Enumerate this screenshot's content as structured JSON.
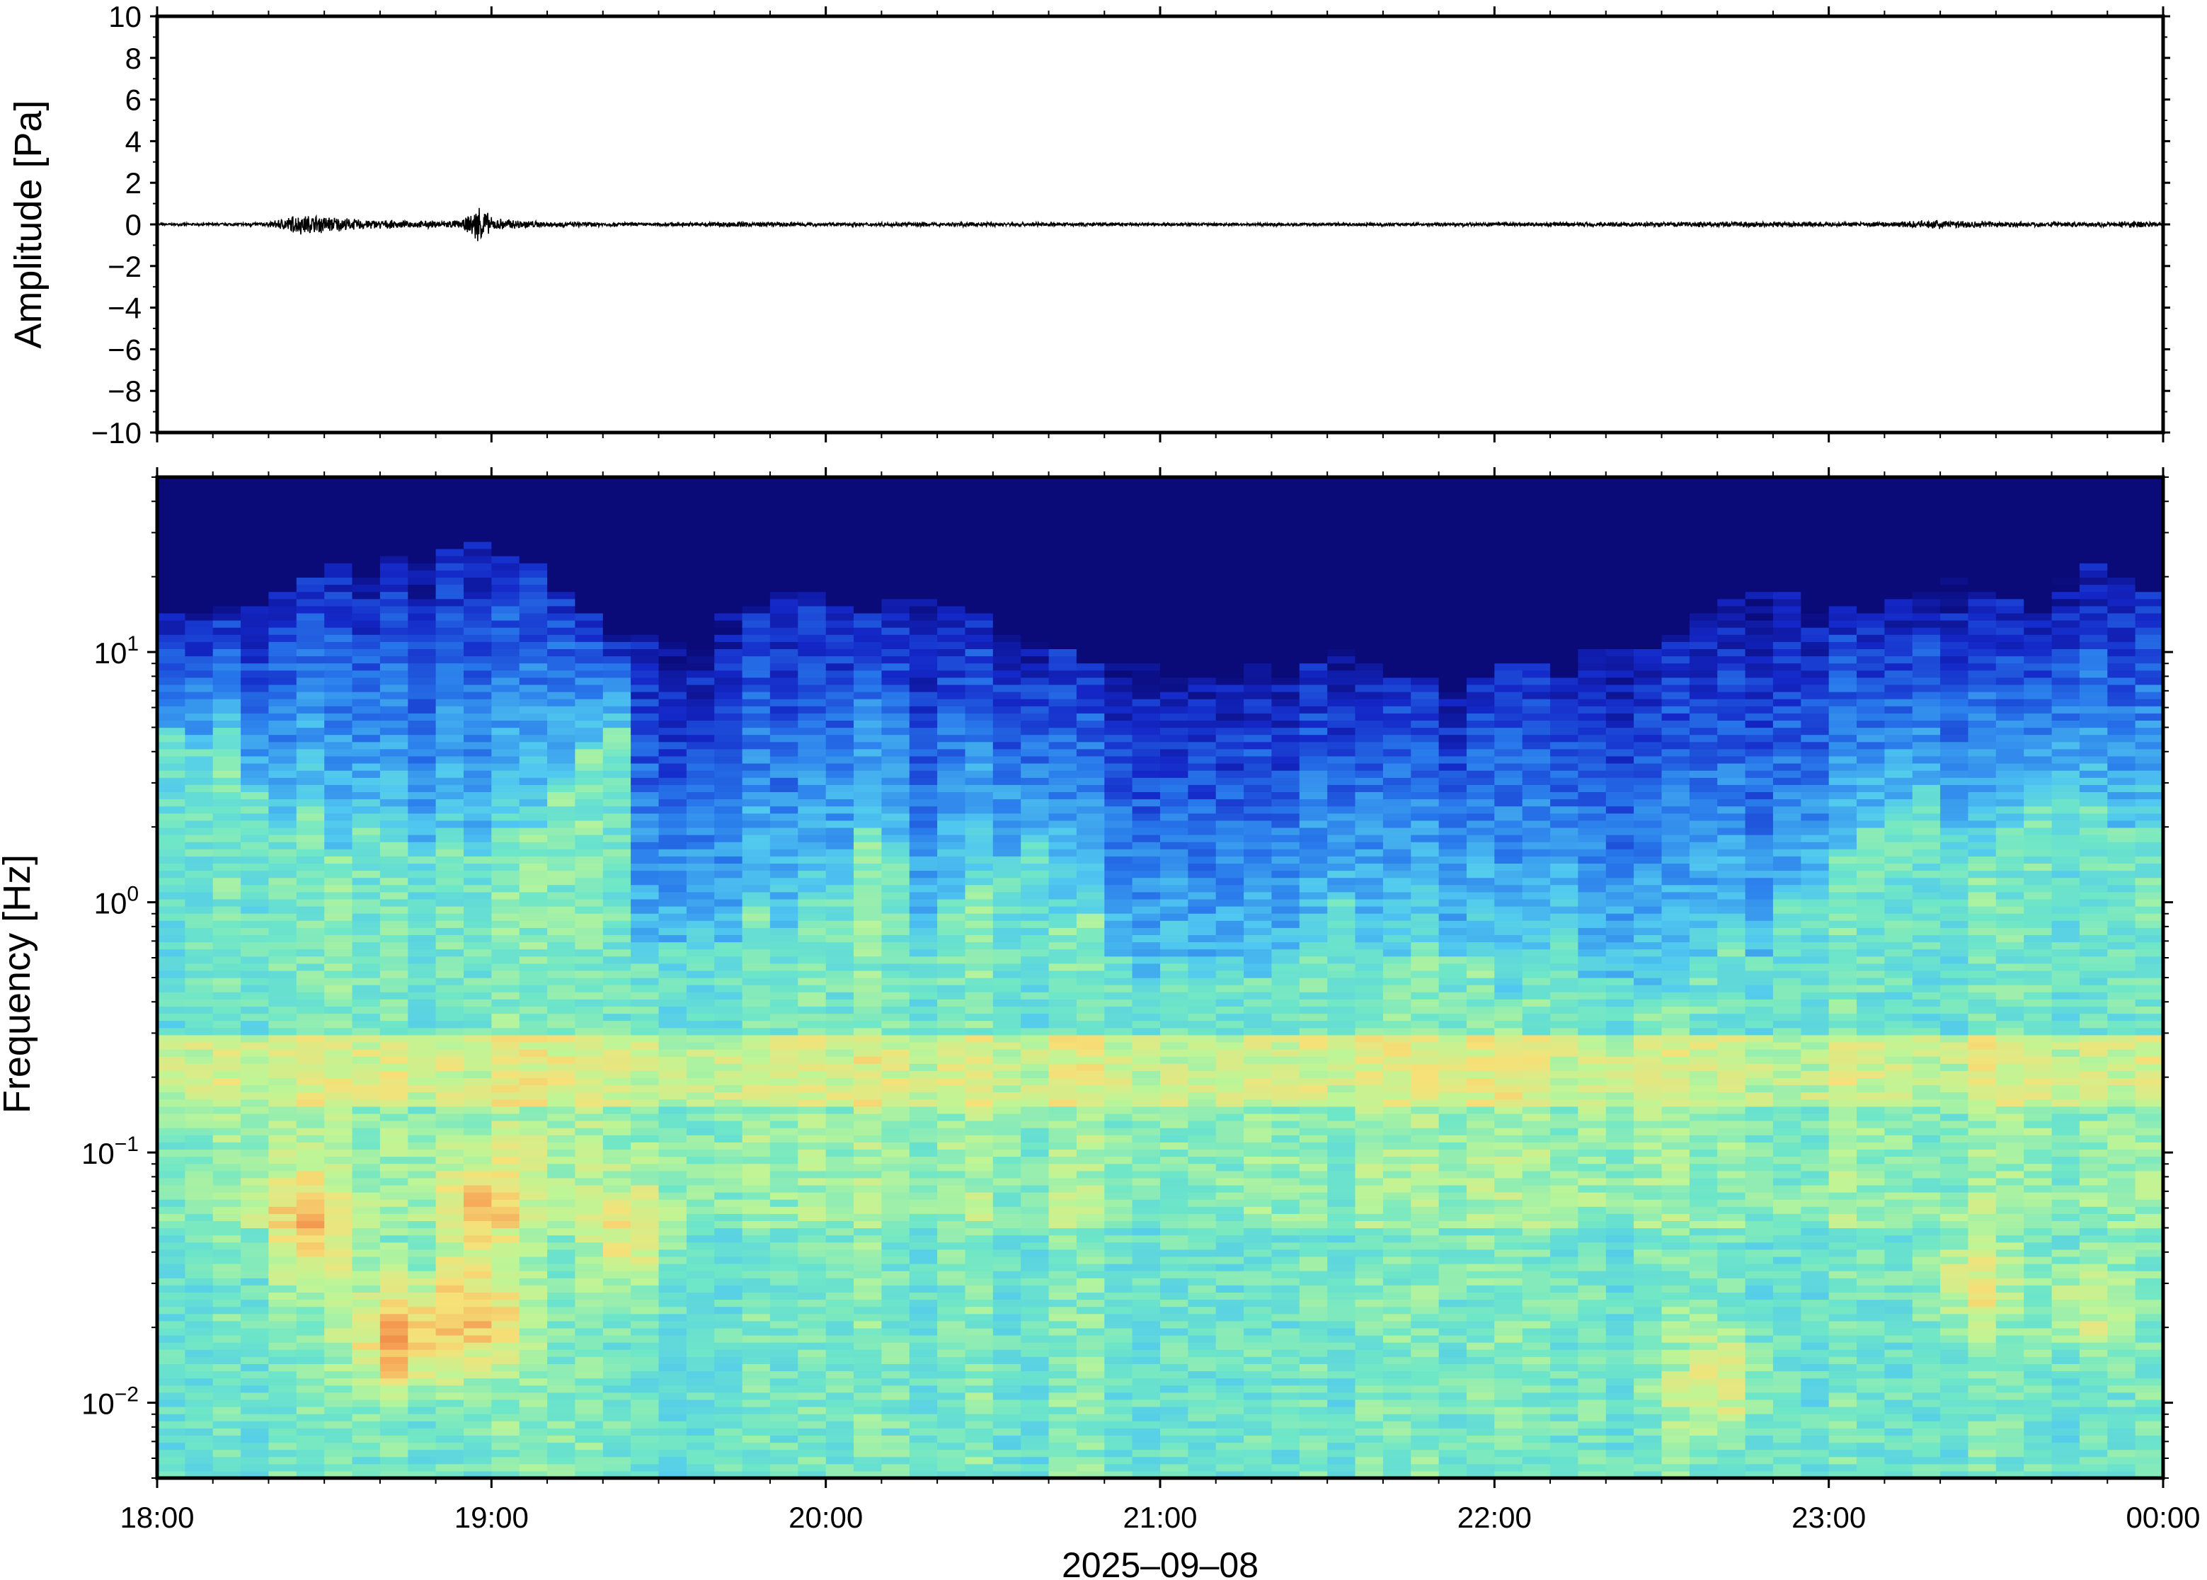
{
  "chart_data": [
    {
      "type": "line",
      "ylabel": "Amplitude [Pa]",
      "ylim": [
        -10,
        10
      ],
      "yticks": [
        10,
        8,
        6,
        4,
        2,
        0,
        -2,
        -4,
        -6,
        -8,
        -10
      ],
      "ytick_labels": [
        "10",
        "8",
        "6",
        "4",
        "2",
        "0",
        "−2",
        "−4",
        "−6",
        "−8",
        "−10"
      ],
      "xlim": [
        "18:00",
        "00:00"
      ],
      "series": [
        {
          "values": [
            {
              "t": "18:00",
              "amp": 0.05
            },
            {
              "t": "18:10",
              "amp": 0.06
            },
            {
              "t": "18:20",
              "amp": 0.1
            },
            {
              "t": "18:25",
              "amp": 0.45
            },
            {
              "t": "18:30",
              "amp": 0.4
            },
            {
              "t": "18:35",
              "amp": 0.25
            },
            {
              "t": "18:45",
              "amp": 0.15
            },
            {
              "t": "18:55",
              "amp": 0.2
            },
            {
              "t": "18:58",
              "amp": 0.95
            },
            {
              "t": "19:00",
              "amp": 0.3
            },
            {
              "t": "19:10",
              "amp": 0.12
            },
            {
              "t": "19:30",
              "amp": 0.08
            },
            {
              "t": "19:45",
              "amp": 0.12
            },
            {
              "t": "20:00",
              "amp": 0.08
            },
            {
              "t": "20:30",
              "amp": 0.1
            },
            {
              "t": "21:00",
              "amp": 0.07
            },
            {
              "t": "21:30",
              "amp": 0.07
            },
            {
              "t": "22:00",
              "amp": 0.08
            },
            {
              "t": "22:15",
              "amp": 0.1
            },
            {
              "t": "22:45",
              "amp": 0.12
            },
            {
              "t": "23:10",
              "amp": 0.1
            },
            {
              "t": "23:20",
              "amp": 0.2
            },
            {
              "t": "23:40",
              "amp": 0.1
            },
            {
              "t": "23:55",
              "amp": 0.15
            },
            {
              "t": "00:00",
              "amp": 0.08
            }
          ]
        }
      ]
    },
    {
      "type": "heatmap",
      "ylabel": "Frequency [Hz]",
      "yscale": "log",
      "ylim": [
        0.005,
        50
      ],
      "yticks": [
        0.01,
        0.1,
        1,
        10
      ],
      "ytick_labels": [
        {
          "base": "10",
          "exp": "−2"
        },
        {
          "base": "10",
          "exp": "−1"
        },
        {
          "base": "10",
          "exp": "0"
        },
        {
          "base": "10",
          "exp": "1"
        }
      ],
      "xlabel": "2025–09–08",
      "xlim": [
        "18:00",
        "00:00"
      ],
      "xticks": [
        "18:00",
        "19:00",
        "20:00",
        "21:00",
        "22:00",
        "23:00",
        "00:00"
      ],
      "colormap": "jet",
      "colors": {
        "low": "#0a0a78",
        "mid": "#6ee6c8",
        "high": "#f0a050"
      },
      "column_minutes": 5,
      "high_frequency_cutoff_hz": [
        15,
        14,
        15,
        16,
        18,
        20,
        22,
        20,
        24,
        22,
        26,
        28,
        24,
        22,
        18,
        14,
        12,
        12,
        11,
        12,
        14,
        15,
        17,
        18,
        15,
        14,
        16,
        16,
        15,
        14,
        12,
        12,
        10,
        9,
        9,
        9,
        8,
        8,
        8,
        9,
        8,
        9,
        10,
        9,
        8,
        8,
        7,
        8,
        9,
        9,
        8,
        10,
        11,
        10,
        12,
        14,
        16,
        17,
        18,
        16,
        15,
        14,
        16,
        18,
        20,
        18,
        16,
        14,
        20,
        22,
        20,
        18,
        16,
        15
      ],
      "blue_to_green_boundary_hz": [
        5,
        4,
        5,
        3,
        2,
        2.5,
        1.5,
        2,
        1.8,
        1.5,
        2,
        1.5,
        2,
        2,
        3,
        4,
        5,
        0.6,
        0.7,
        0.8,
        0.7,
        1,
        0.8,
        1,
        1.2,
        2,
        1.5,
        0.8,
        1,
        1.2,
        1.5,
        1.8,
        0.9,
        0.9,
        0.6,
        0.5,
        0.6,
        0.5,
        0.6,
        0.5,
        0.6,
        0.7,
        1.1,
        0.6,
        0.6,
        0.7,
        0.6,
        0.6,
        0.4,
        0.6,
        0.8,
        0.5,
        0.5,
        0.4,
        0.4,
        0.6,
        0.8,
        0.6,
        1,
        1.2,
        1.5,
        2,
        2.5,
        3,
        2,
        1.5,
        2,
        2.5,
        3,
        2.5,
        2,
        2,
        2.5,
        3
      ],
      "warm_band_hz": [
        0.15,
        0.3
      ],
      "low_frequency_hotspots": [
        {
          "t": "18:27",
          "f": 0.05,
          "level": 0.8
        },
        {
          "t": "18:43",
          "f": 0.018,
          "level": 1.0
        },
        {
          "t": "18:57",
          "f": 0.022,
          "level": 0.9
        },
        {
          "t": "18:58",
          "f": 0.06,
          "level": 0.7
        },
        {
          "t": "19:25",
          "f": 0.045,
          "level": 0.6
        },
        {
          "t": "22:40",
          "f": 0.012,
          "level": 0.6
        },
        {
          "t": "23:25",
          "f": 0.03,
          "level": 0.6
        },
        {
          "t": "23:47",
          "f": 0.025,
          "level": 0.5
        }
      ]
    }
  ]
}
